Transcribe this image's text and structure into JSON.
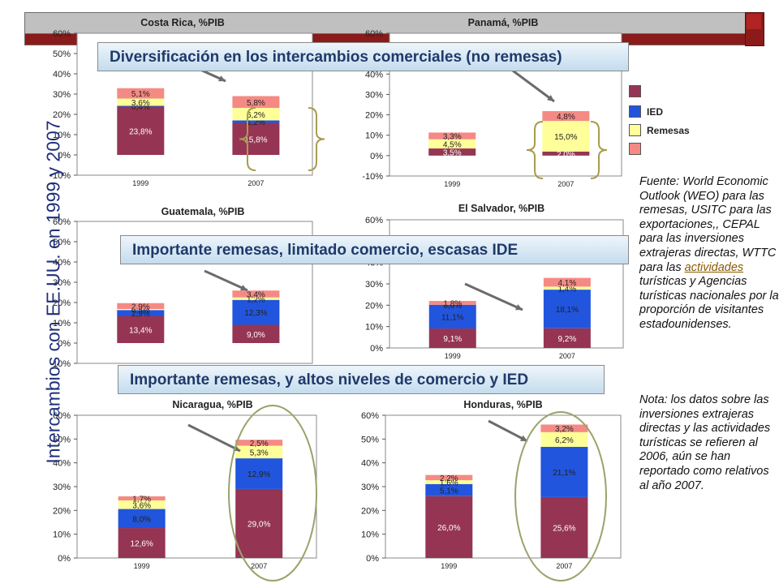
{
  "page_title": "Intercambios con EE.UU. en 1999 y 2007",
  "banners": {
    "top": "Diversificación en los intercambios comerciales (no remesas)",
    "middle": "Importante remesas, limitado comercio, escasas IDE",
    "bottom": "Importante remesas, y altos niveles de comercio y IED"
  },
  "legend": {
    "items": [
      {
        "label": "",
        "color": "#953553"
      },
      {
        "label": "IED",
        "color": "#2255dd"
      },
      {
        "label": "Remesas",
        "color": "#ffff99"
      },
      {
        "label": "",
        "color": "#f58a84"
      }
    ]
  },
  "source": {
    "prefix": "Fuente: World Economic Outlook (WEO) para las remesas, USITC para las exportaciones,, CEPAL para las inversiones extrajeras directas, WTTC para las ",
    "link": "actividades",
    "suffix": " turísticas  y Agencias turísticas nacionales por la proporción de visitantes estadounidenses."
  },
  "note": "Nota: los datos sobre las inversiones extrajeras  directas y las actividades turísticas  se refieren al 2006, aún se han reportado como relativos al año 2007.",
  "colors": {
    "exports": "#953553",
    "ied": "#2255dd",
    "remesas": "#ffff99",
    "tourism": "#f58a84"
  },
  "chart_data": [
    {
      "type": "bar",
      "stacked": true,
      "title": "Costa Rica, %PIB",
      "categories": [
        "1999",
        "2007"
      ],
      "y_ticks": [
        "-10%",
        "0%",
        "10%",
        "20%",
        "30%",
        "40%",
        "50%",
        "60%"
      ],
      "ylim": [
        -10,
        60
      ],
      "series": [
        {
          "values": [
            23.8,
            15.8
          ],
          "labels": [
            "23,8%",
            "15,8%"
          ]
        },
        {
          "values": [
            0.4,
            1.2
          ],
          "labels": [
            "0,4%",
            "1,2%"
          ]
        },
        {
          "values": [
            3.6,
            6.2
          ],
          "labels": [
            "3,6%",
            "6,2%"
          ]
        },
        {
          "values": [
            5.1,
            5.8
          ],
          "labels": [
            "5,1%",
            "5,8%"
          ]
        }
      ]
    },
    {
      "type": "bar",
      "stacked": true,
      "title": "Panamá, %PIB",
      "categories": [
        "1999",
        "2007"
      ],
      "y_ticks": [
        "-10%",
        "0%",
        "10%",
        "20%",
        "30%",
        "40%",
        "50%",
        "60%"
      ],
      "ylim": [
        -10,
        60
      ],
      "series": [
        {
          "values": [
            3.5,
            2.0
          ],
          "labels": [
            "3,5%",
            "2,0%"
          ]
        },
        {
          "values": [
            0,
            0
          ],
          "labels": [
            "",
            ""
          ]
        },
        {
          "values": [
            4.5,
            15.0
          ],
          "labels": [
            "4,5%",
            "15,0%"
          ]
        },
        {
          "values": [
            3.3,
            4.8
          ],
          "labels": [
            "3,3%",
            "4,8%"
          ]
        }
      ]
    },
    {
      "type": "bar",
      "stacked": true,
      "title": "Guatemala, %PIB",
      "categories": [
        "1999",
        "2007"
      ],
      "y_ticks": [
        "-10%",
        "0%",
        "10%",
        "20%",
        "30%",
        "40%",
        "50%",
        "60%"
      ],
      "ylim": [
        -10,
        60
      ],
      "series": [
        {
          "values": [
            13.4,
            9.0
          ],
          "labels": [
            "13,4%",
            "9,0%"
          ]
        },
        {
          "values": [
            2.9,
            12.3
          ],
          "labels": [
            "2,9%",
            "12,3%"
          ]
        },
        {
          "values": [
            0.5,
            1.2
          ],
          "labels": [
            "0,5%",
            "1,2%"
          ]
        },
        {
          "values": [
            2.9,
            3.4
          ],
          "labels": [
            "2,9%",
            "3,4%"
          ]
        }
      ]
    },
    {
      "type": "bar",
      "stacked": true,
      "title": "El Salvador, %PIB",
      "categories": [
        "1999",
        "2007"
      ],
      "y_ticks": [
        "0%",
        "10%",
        "20%",
        "30%",
        "40%",
        "50%",
        "60%"
      ],
      "ylim": [
        0,
        60
      ],
      "series": [
        {
          "values": [
            9.1,
            9.2
          ],
          "labels": [
            "9,1%",
            "9,2%"
          ]
        },
        {
          "values": [
            11.1,
            18.1
          ],
          "labels": [
            "11,1%",
            "18,1%"
          ]
        },
        {
          "values": [
            0.0,
            1.4
          ],
          "labels": [
            "0,0%",
            "1,4%"
          ]
        },
        {
          "values": [
            1.8,
            4.1
          ],
          "labels": [
            "1,8%",
            "4,1%"
          ]
        }
      ]
    },
    {
      "type": "bar",
      "stacked": true,
      "title": "Nicaragua, %PIB",
      "categories": [
        "1999",
        "2007"
      ],
      "y_ticks": [
        "0%",
        "10%",
        "20%",
        "30%",
        "40%",
        "50%",
        "60%"
      ],
      "ylim": [
        0,
        60
      ],
      "series": [
        {
          "values": [
            12.6,
            29.0
          ],
          "labels": [
            "12,6%",
            "29,0%"
          ]
        },
        {
          "values": [
            8.0,
            12.9
          ],
          "labels": [
            "8,0%",
            "12,9%"
          ]
        },
        {
          "values": [
            3.6,
            5.3
          ],
          "labels": [
            "3,6%",
            "5,3%"
          ]
        },
        {
          "values": [
            1.7,
            2.5
          ],
          "labels": [
            "1,7%",
            "2,5%"
          ]
        }
      ]
    },
    {
      "type": "bar",
      "stacked": true,
      "title": "Honduras, %PIB",
      "categories": [
        "1999",
        "2007"
      ],
      "y_ticks": [
        "0%",
        "10%",
        "20%",
        "30%",
        "40%",
        "50%",
        "60%"
      ],
      "ylim": [
        0,
        60
      ],
      "series": [
        {
          "values": [
            26.0,
            25.6
          ],
          "labels": [
            "26,0%",
            "25,6%"
          ]
        },
        {
          "values": [
            5.1,
            21.1
          ],
          "labels": [
            "5,1%",
            "21,1%"
          ]
        },
        {
          "values": [
            1.6,
            6.2
          ],
          "labels": [
            "1,6%",
            "6,2%"
          ]
        },
        {
          "values": [
            2.2,
            3.2
          ],
          "labels": [
            "2,2%",
            "3,2%"
          ]
        }
      ]
    }
  ]
}
